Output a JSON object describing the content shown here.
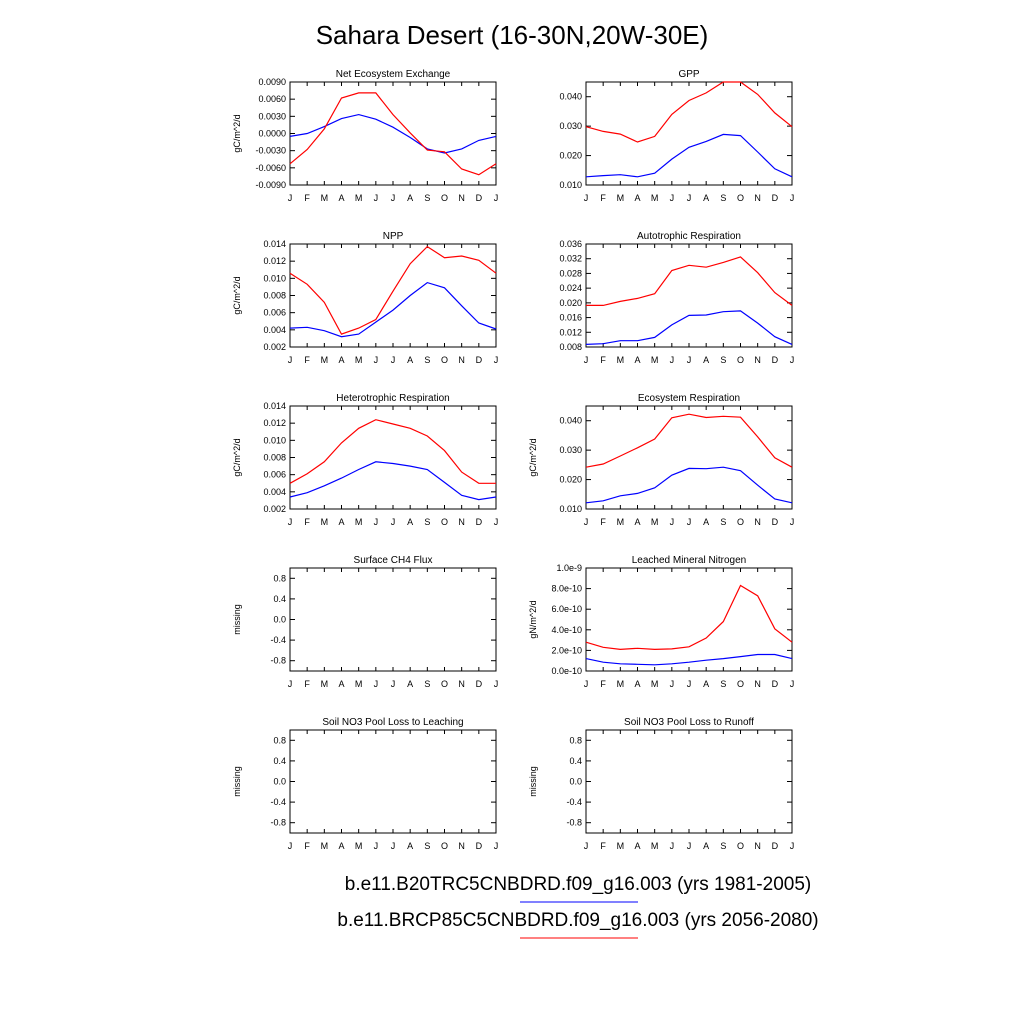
{
  "title": "Sahara Desert (16-30N,20W-30E)",
  "series_colors": {
    "control": "#0000ff",
    "future": "#ff0000"
  },
  "legend": [
    {
      "label": "b.e11.B20TRC5CNBDRD.f09_g16.003 (yrs 1981-2005)",
      "color": "#0000ff"
    },
    {
      "label": "b.e11.BRCP85C5CNBDRD.f09_g16.003 (yrs 2056-2080)",
      "color": "#ff0000"
    }
  ],
  "chart_data": [
    {
      "type": "line",
      "title": "Net Ecosystem Exchange",
      "ylabel": "gC/m^2/d",
      "categories": [
        "J",
        "F",
        "M",
        "A",
        "M",
        "J",
        "J",
        "A",
        "S",
        "O",
        "N",
        "D",
        "J"
      ],
      "ylim": [
        -0.009,
        0.009
      ],
      "yticks": [
        "0.0090",
        "0.0060",
        "0.0030",
        "0.0000",
        "-0.0030",
        "-0.0060",
        "-0.0090"
      ],
      "ytick_values": [
        0.009,
        0.006,
        0.003,
        0.0,
        -0.003,
        -0.006,
        -0.009
      ],
      "series": [
        {
          "values": [
            -0.0005,
            0.0,
            0.0012,
            0.0026,
            0.0033,
            0.0025,
            0.0011,
            -0.0007,
            -0.0027,
            -0.0034,
            -0.0027,
            -0.0012,
            -0.0005
          ]
        },
        {
          "values": [
            -0.0053,
            -0.0028,
            0.0008,
            0.0062,
            0.0071,
            0.0071,
            0.0033,
            0.0001,
            -0.0029,
            -0.0032,
            -0.0062,
            -0.0072,
            -0.0053
          ]
        }
      ]
    },
    {
      "type": "line",
      "title": "GPP",
      "ylabel": "",
      "categories": [
        "J",
        "F",
        "M",
        "A",
        "M",
        "J",
        "J",
        "A",
        "S",
        "O",
        "N",
        "D",
        "J"
      ],
      "ylim": [
        0.01,
        0.045
      ],
      "yticks": [
        "0.040",
        "0.030",
        "0.020",
        "0.010"
      ],
      "ytick_values": [
        0.04,
        0.03,
        0.02,
        0.01
      ],
      "series": [
        {
          "values": [
            0.0128,
            0.0132,
            0.0135,
            0.0128,
            0.014,
            0.0188,
            0.0228,
            0.0248,
            0.0272,
            0.0268,
            0.0212,
            0.0155,
            0.0128
          ]
        },
        {
          "values": [
            0.0298,
            0.0282,
            0.0273,
            0.0246,
            0.0265,
            0.034,
            0.0387,
            0.0413,
            0.045,
            0.045,
            0.0408,
            0.0345,
            0.0298
          ]
        }
      ]
    },
    {
      "type": "line",
      "title": "NPP",
      "ylabel": "gC/m^2/d",
      "categories": [
        "J",
        "F",
        "M",
        "A",
        "M",
        "J",
        "J",
        "A",
        "S",
        "O",
        "N",
        "D",
        "J"
      ],
      "ylim": [
        0.002,
        0.014
      ],
      "yticks": [
        "0.014",
        "0.012",
        "0.010",
        "0.008",
        "0.006",
        "0.004",
        "0.002"
      ],
      "ytick_values": [
        0.014,
        0.012,
        0.01,
        0.008,
        0.006,
        0.004,
        0.002
      ],
      "series": [
        {
          "values": [
            0.0042,
            0.0043,
            0.0039,
            0.0032,
            0.0035,
            0.0049,
            0.0063,
            0.008,
            0.0095,
            0.0089,
            0.0068,
            0.0048,
            0.0041
          ]
        },
        {
          "values": [
            0.0106,
            0.0093,
            0.0072,
            0.0035,
            0.0042,
            0.0052,
            0.0085,
            0.0117,
            0.0137,
            0.0124,
            0.0126,
            0.0121,
            0.0106
          ]
        }
      ]
    },
    {
      "type": "line",
      "title": "Autotrophic Respiration",
      "ylabel": "",
      "categories": [
        "J",
        "F",
        "M",
        "A",
        "M",
        "J",
        "J",
        "A",
        "S",
        "O",
        "N",
        "D",
        "J"
      ],
      "ylim": [
        0.008,
        0.036
      ],
      "yticks": [
        "0.036",
        "0.032",
        "0.028",
        "0.024",
        "0.020",
        "0.016",
        "0.012",
        "0.008"
      ],
      "ytick_values": [
        0.036,
        0.032,
        0.028,
        0.024,
        0.02,
        0.016,
        0.012,
        0.008
      ],
      "series": [
        {
          "values": [
            0.0087,
            0.0089,
            0.0097,
            0.0097,
            0.0106,
            0.014,
            0.0166,
            0.0167,
            0.0176,
            0.0178,
            0.0145,
            0.0108,
            0.0087
          ]
        },
        {
          "values": [
            0.0193,
            0.0193,
            0.0204,
            0.0212,
            0.0225,
            0.0288,
            0.0302,
            0.0297,
            0.031,
            0.0325,
            0.0282,
            0.0228,
            0.0193
          ]
        }
      ]
    },
    {
      "type": "line",
      "title": "Heterotrophic Respiration",
      "ylabel": "gC/m^2/d",
      "categories": [
        "J",
        "F",
        "M",
        "A",
        "M",
        "J",
        "J",
        "A",
        "S",
        "O",
        "N",
        "D",
        "J"
      ],
      "ylim": [
        0.002,
        0.014
      ],
      "yticks": [
        "0.014",
        "0.012",
        "0.010",
        "0.008",
        "0.006",
        "0.004",
        "0.002"
      ],
      "ytick_values": [
        0.014,
        0.012,
        0.01,
        0.008,
        0.006,
        0.004,
        0.002
      ],
      "series": [
        {
          "values": [
            0.0034,
            0.0039,
            0.0047,
            0.0056,
            0.0066,
            0.0075,
            0.0073,
            0.007,
            0.0066,
            0.0051,
            0.0036,
            0.0031,
            0.0034
          ]
        },
        {
          "values": [
            0.005,
            0.0061,
            0.0075,
            0.0097,
            0.0114,
            0.0124,
            0.0119,
            0.0114,
            0.0105,
            0.0088,
            0.0063,
            0.005,
            0.005
          ]
        }
      ]
    },
    {
      "type": "line",
      "title": "Ecosystem Respiration",
      "ylabel": "gC/m^2/d",
      "categories": [
        "J",
        "F",
        "M",
        "A",
        "M",
        "J",
        "J",
        "A",
        "S",
        "O",
        "N",
        "D",
        "J"
      ],
      "ylim": [
        0.01,
        0.045
      ],
      "yticks": [
        "0.040",
        "0.030",
        "0.020",
        "0.010"
      ],
      "ytick_values": [
        0.04,
        0.03,
        0.02,
        0.01
      ],
      "series": [
        {
          "values": [
            0.0121,
            0.0128,
            0.0145,
            0.0153,
            0.0172,
            0.0215,
            0.0238,
            0.0237,
            0.0242,
            0.023,
            0.0181,
            0.0134,
            0.0121
          ]
        },
        {
          "values": [
            0.0242,
            0.0253,
            0.028,
            0.0308,
            0.0338,
            0.041,
            0.0422,
            0.0411,
            0.0415,
            0.0412,
            0.0345,
            0.0274,
            0.0242
          ]
        }
      ]
    },
    {
      "type": "line",
      "title": "Surface CH4 Flux",
      "ylabel": "missing",
      "categories": [
        "J",
        "F",
        "M",
        "A",
        "M",
        "J",
        "J",
        "A",
        "S",
        "O",
        "N",
        "D",
        "J"
      ],
      "ylim": [
        -1.0,
        1.0
      ],
      "yticks": [
        "0.8",
        "0.4",
        "0.0",
        "-0.4",
        "-0.8"
      ],
      "ytick_values": [
        0.8,
        0.4,
        0.0,
        -0.4,
        -0.8
      ],
      "series": []
    },
    {
      "type": "line",
      "title": "Leached Mineral Nitrogen",
      "ylabel": "gN/m^2/d",
      "categories": [
        "J",
        "F",
        "M",
        "A",
        "M",
        "J",
        "J",
        "A",
        "S",
        "O",
        "N",
        "D",
        "J"
      ],
      "ylim": [
        0.0,
        1e-09
      ],
      "yticks": [
        "1.0e-9",
        "8.0e-10",
        "6.0e-10",
        "4.0e-10",
        "2.0e-10",
        "0.0e-10"
      ],
      "ytick_values": [
        1e-09,
        8e-10,
        6e-10,
        4e-10,
        2e-10,
        0.0
      ],
      "series": [
        {
          "values": [
            1.2e-10,
            8.5e-11,
            7e-11,
            6.5e-11,
            6e-11,
            7e-11,
            8.5e-11,
            1.05e-10,
            1.2e-10,
            1.4e-10,
            1.6e-10,
            1.6e-10,
            1.2e-10
          ]
        },
        {
          "values": [
            2.8e-10,
            2.3e-10,
            2.1e-10,
            2.2e-10,
            2.1e-10,
            2.15e-10,
            2.35e-10,
            3.2e-10,
            4.8e-10,
            8.3e-10,
            7.3e-10,
            4.1e-10,
            2.8e-10
          ]
        }
      ]
    },
    {
      "type": "line",
      "title": "Soil NO3 Pool Loss to Leaching",
      "ylabel": "missing",
      "categories": [
        "J",
        "F",
        "M",
        "A",
        "M",
        "J",
        "J",
        "A",
        "S",
        "O",
        "N",
        "D",
        "J"
      ],
      "ylim": [
        -1.0,
        1.0
      ],
      "yticks": [
        "0.8",
        "0.4",
        "0.0",
        "-0.4",
        "-0.8"
      ],
      "ytick_values": [
        0.8,
        0.4,
        0.0,
        -0.4,
        -0.8
      ],
      "series": []
    },
    {
      "type": "line",
      "title": "Soil NO3 Pool Loss to Runoff",
      "ylabel": "missing",
      "categories": [
        "J",
        "F",
        "M",
        "A",
        "M",
        "J",
        "J",
        "A",
        "S",
        "O",
        "N",
        "D",
        "J"
      ],
      "ylim": [
        -1.0,
        1.0
      ],
      "yticks": [
        "0.8",
        "0.4",
        "0.0",
        "-0.4",
        "-0.8"
      ],
      "ytick_values": [
        0.8,
        0.4,
        0.0,
        -0.4,
        -0.8
      ],
      "series": []
    }
  ]
}
